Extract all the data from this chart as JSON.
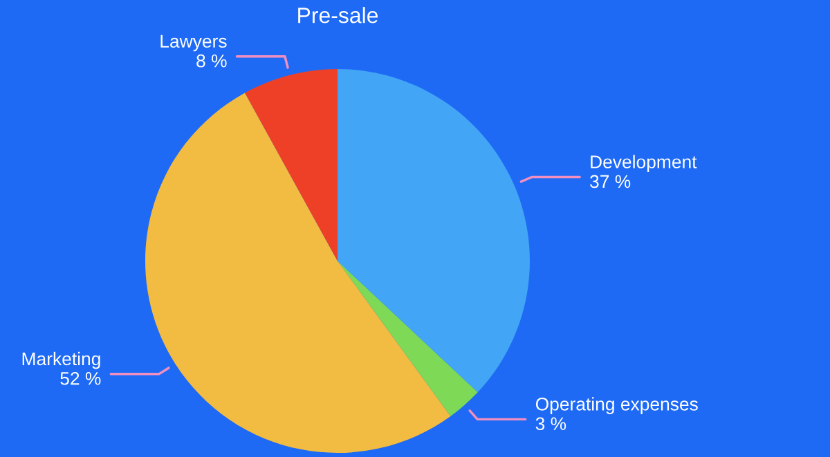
{
  "chart_data": {
    "type": "pie",
    "title": "Pre-sale",
    "categories": [
      "Development",
      "Operating expenses",
      "Marketing",
      "Lawyers"
    ],
    "values": [
      37,
      3,
      52,
      8
    ],
    "value_labels": [
      "37 %",
      "3 %",
      "52 %",
      "8 %"
    ],
    "colors": [
      "#42a5f5",
      "#7ed957",
      "#f2bb41",
      "#ee4027"
    ],
    "legend": false
  }
}
